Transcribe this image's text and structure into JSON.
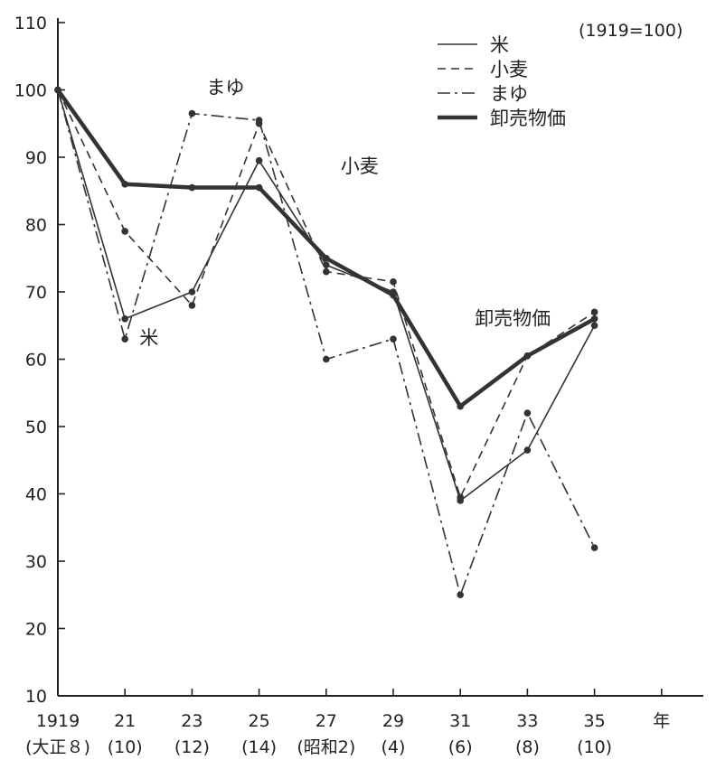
{
  "chart_data": {
    "type": "line",
    "note": "(1919=100)",
    "x_unit_label": "年",
    "categories": [
      "1919",
      "21",
      "23",
      "25",
      "27",
      "29",
      "31",
      "33",
      "35"
    ],
    "category_sublabels": [
      "(大正８)",
      "(10)",
      "(12)",
      "(14)",
      "(昭和2)",
      "(4)",
      "(6)",
      "(8)",
      "(10)"
    ],
    "ylim": [
      10,
      110
    ],
    "yticks": [
      10,
      20,
      30,
      40,
      50,
      60,
      70,
      80,
      90,
      100,
      110
    ],
    "grid": false,
    "legend_position": "top-right",
    "series": [
      {
        "name": "米",
        "style": "solid",
        "values": [
          100,
          66,
          70,
          89.5,
          74,
          70,
          39,
          46.5,
          65
        ]
      },
      {
        "name": "小麦",
        "style": "dashed",
        "values": [
          100,
          79,
          68,
          95,
          73,
          71.5,
          39.5,
          60.5,
          67
        ]
      },
      {
        "name": "まゆ",
        "style": "dashdot",
        "values": [
          100,
          63,
          96.5,
          95.5,
          60,
          63,
          25,
          52,
          32
        ]
      },
      {
        "name": "卸売物価",
        "style": "bold",
        "values": [
          100,
          86,
          85.5,
          85.5,
          75,
          69.5,
          53,
          60.5,
          66
        ]
      }
    ],
    "annotations": [
      {
        "text": "まゆ",
        "x": "23",
        "y": 100.5
      },
      {
        "text": "小麦",
        "x": "27",
        "y": 88.8
      },
      {
        "text": "米",
        "x": "21",
        "y": 63.3
      },
      {
        "text": "卸売物価",
        "x": "31",
        "y": 66.2
      }
    ]
  }
}
